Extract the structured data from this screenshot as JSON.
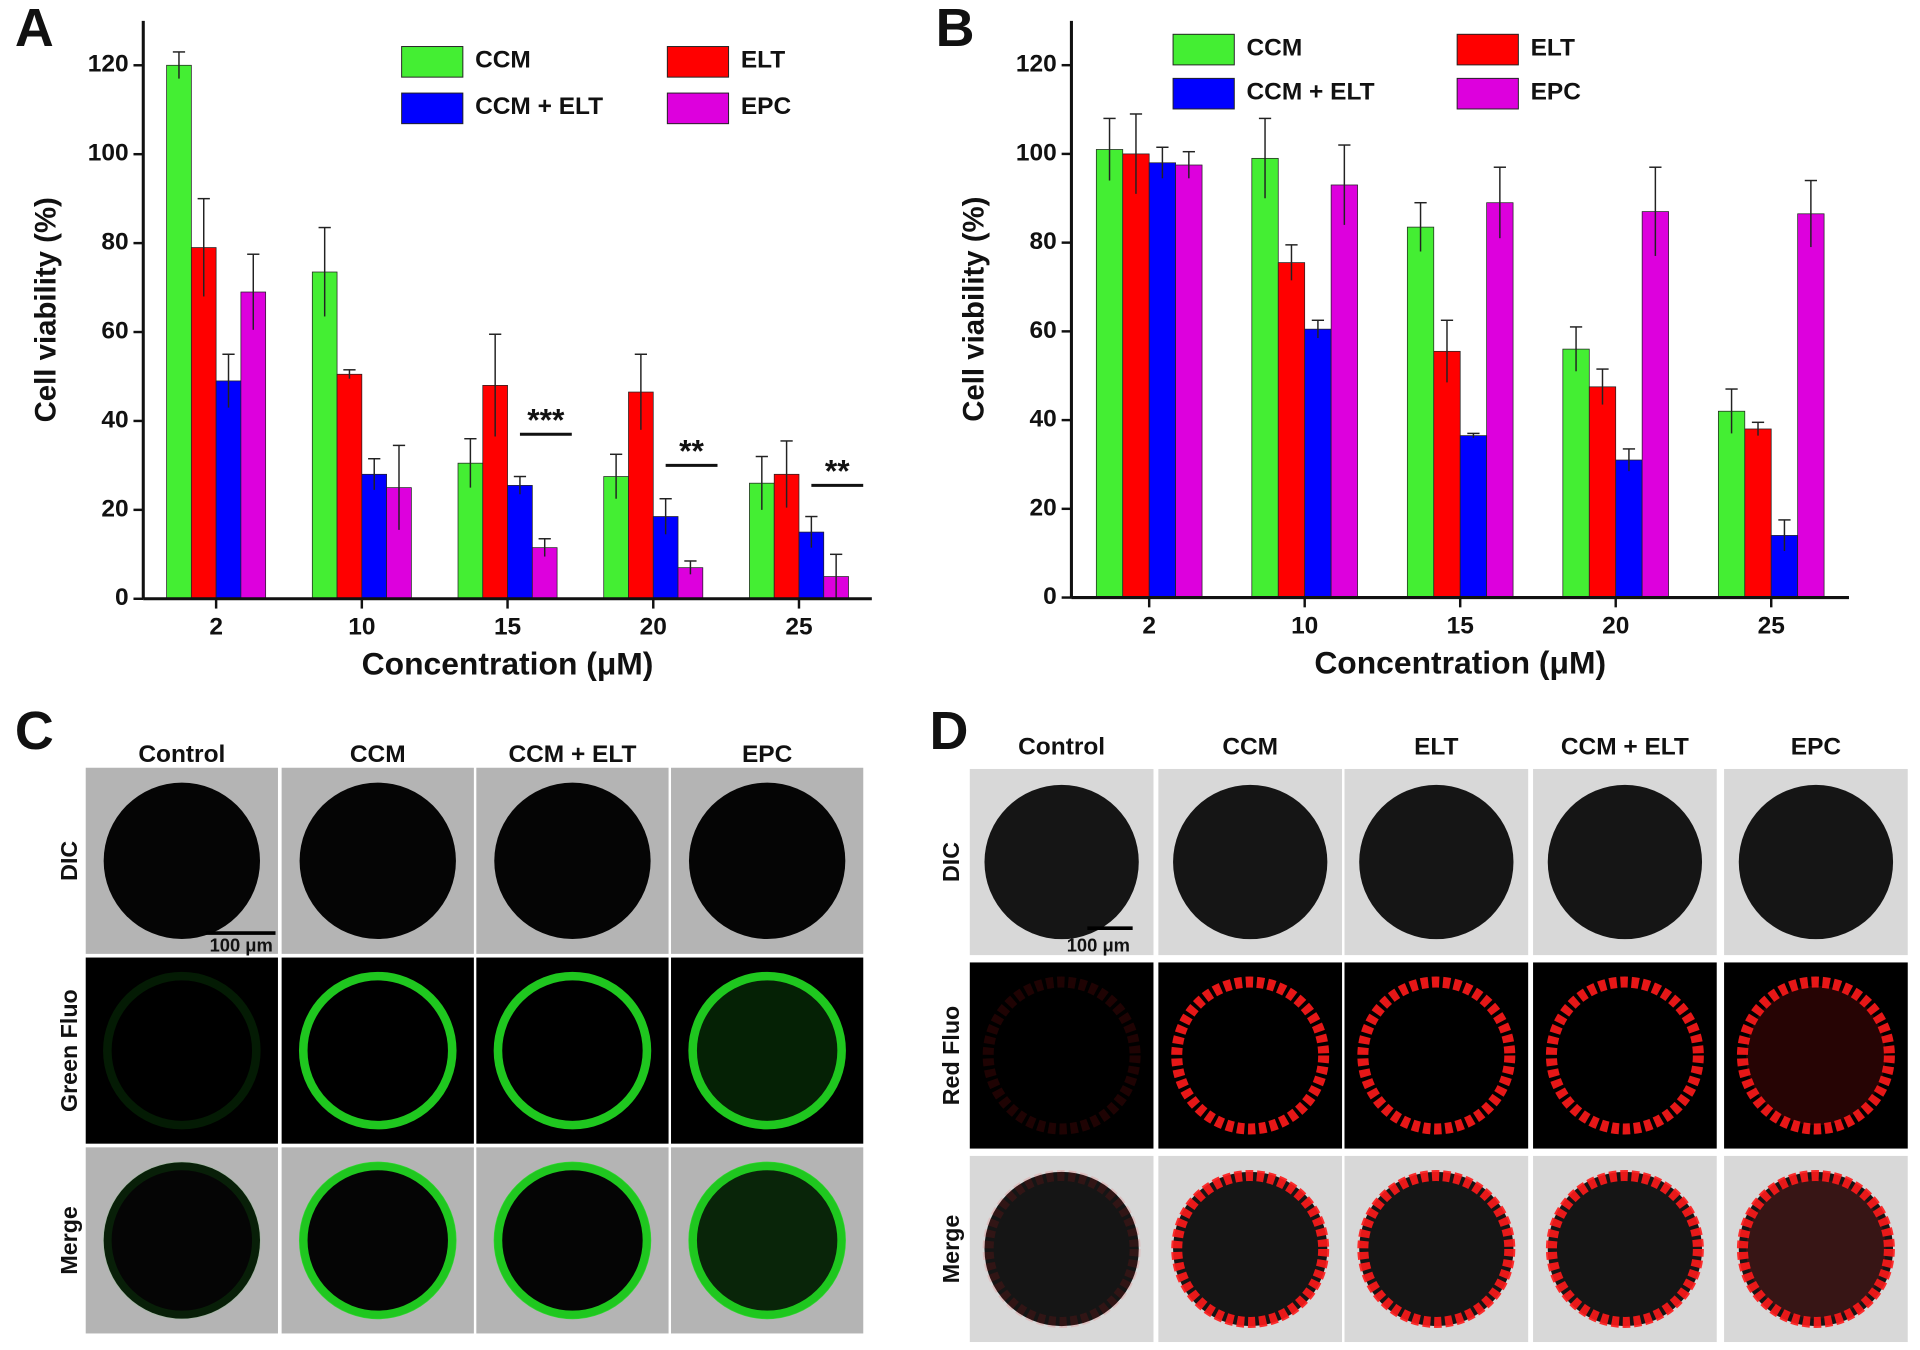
{
  "chart_data": [
    {
      "type": "bar",
      "panel_label": "A",
      "xlabel": "Concentration (μM)",
      "ylabel": "Cell viability (%)",
      "categories": [
        "2",
        "10",
        "15",
        "20",
        "25"
      ],
      "series": [
        {
          "name": "CCM",
          "color": "#44ee33",
          "values": [
            120,
            73.5,
            30.5,
            27.5,
            26
          ],
          "errors": [
            3,
            10,
            5.5,
            5,
            6
          ]
        },
        {
          "name": "ELT",
          "color": "#ff0000",
          "values": [
            79,
            50.5,
            48,
            46.5,
            28
          ],
          "errors": [
            11,
            1,
            11.5,
            8.5,
            7.5
          ]
        },
        {
          "name": "CCM + ELT",
          "color": "#0000ff",
          "values": [
            49,
            28,
            25.5,
            18.5,
            15
          ],
          "errors": [
            6,
            3.5,
            2,
            4,
            3.5
          ]
        },
        {
          "name": "EPC",
          "color": "#dd00dd",
          "values": [
            69,
            25,
            11.5,
            7,
            5
          ],
          "errors": [
            8.5,
            9.5,
            2,
            1.5,
            5
          ]
        }
      ],
      "annotations": [
        {
          "text": "***",
          "x": "15",
          "y": 37
        },
        {
          "text": "**",
          "x": "20",
          "y": 30
        },
        {
          "text": "**",
          "x": "25",
          "y": 25.5
        }
      ],
      "ylim": [
        0,
        130
      ],
      "yticks": [
        0,
        20,
        40,
        60,
        80,
        100,
        120
      ]
    },
    {
      "type": "bar",
      "panel_label": "B",
      "xlabel": "Concentration (μM)",
      "ylabel": "Cell viability (%)",
      "categories": [
        "2",
        "10",
        "15",
        "20",
        "25"
      ],
      "series": [
        {
          "name": "CCM",
          "color": "#44ee33",
          "values": [
            101,
            99,
            83.5,
            56,
            42
          ],
          "errors": [
            7,
            9,
            5.5,
            5,
            5
          ]
        },
        {
          "name": "ELT",
          "color": "#ff0000",
          "values": [
            100,
            75.5,
            55.5,
            47.5,
            38
          ],
          "errors": [
            9,
            4,
            7,
            4,
            1.5
          ]
        },
        {
          "name": "CCM + ELT",
          "color": "#0000ff",
          "values": [
            98,
            60.5,
            36.5,
            31,
            14
          ],
          "errors": [
            3.5,
            2,
            0.5,
            2.5,
            3.5
          ]
        },
        {
          "name": "EPC",
          "color": "#dd00dd",
          "values": [
            97.5,
            93,
            89,
            87,
            86.5
          ],
          "errors": [
            3,
            9,
            8,
            10,
            7.5
          ]
        }
      ],
      "ylim": [
        0,
        130
      ],
      "yticks": [
        0,
        20,
        40,
        60,
        80,
        100,
        120
      ]
    }
  ],
  "panels": [
    {
      "label": "C",
      "columns": [
        "Control",
        "CCM",
        "CCM + ELT",
        "EPC"
      ],
      "rows": [
        "DIC",
        "Green Fluo",
        "Merge"
      ],
      "scale_bar": "100 μm",
      "color": "#22dd22"
    },
    {
      "label": "D",
      "columns": [
        "Control",
        "CCM",
        "ELT",
        "CCM + ELT",
        "EPC"
      ],
      "rows": [
        "DIC",
        "Red Fluo",
        "Merge"
      ],
      "scale_bar": "100 μm",
      "color": "#ff1a1a"
    }
  ]
}
